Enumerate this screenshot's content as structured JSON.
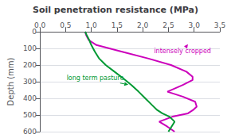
{
  "chart_data": {
    "type": "line",
    "title": "Soil penetration resistance (MPa)",
    "ylabel": "Depth (mm)",
    "xlim": [
      0.0,
      3.5
    ],
    "ylim": [
      600,
      0
    ],
    "xticks": [
      {
        "value": 0.0,
        "label": "0.0"
      },
      0.5,
      {
        "value": 1.0,
        "label": "1.0"
      },
      1.5,
      {
        "value": 2.0,
        "label": "2.0"
      },
      2.5,
      {
        "value": 3.0,
        "label": "3.0"
      },
      3.5
    ],
    "yticks": [
      0,
      100,
      200,
      300,
      400,
      500,
      600
    ],
    "grid": true,
    "series": [
      {
        "color": "#cc00bb",
        "x": [
          0.88,
          0.9,
          0.95,
          1.1,
          1.6,
          2.1,
          2.55,
          2.85,
          2.97,
          2.97,
          2.78,
          2.48,
          2.78,
          3.02,
          3.05,
          2.98,
          2.88,
          2.58,
          2.32,
          2.48,
          2.62
        ],
        "values": [
          0,
          20,
          50,
          80,
          120,
          160,
          200,
          240,
          270,
          290,
          320,
          360,
          390,
          420,
          450,
          470,
          490,
          510,
          540,
          570,
          600
        ]
      },
      {
        "color": "#009933",
        "x": [
          0.88,
          0.91,
          0.96,
          1.0,
          1.07,
          1.15,
          1.28,
          1.45,
          1.62,
          1.78,
          1.92,
          2.05,
          2.18,
          2.28,
          2.38,
          2.52,
          2.62,
          2.56,
          2.5
        ],
        "values": [
          0,
          20,
          50,
          80,
          120,
          160,
          200,
          240,
          280,
          320,
          360,
          400,
          440,
          470,
          490,
          510,
          540,
          570,
          600
        ]
      }
    ],
    "annotations": [
      {
        "text": "intensely cropped",
        "color": "#cc00bb",
        "x": 2.88,
        "y": 75,
        "text_x": 2.22,
        "text_y": 118
      },
      {
        "text": "long term pasture",
        "color": "#009933",
        "x": 1.72,
        "y": 318,
        "text_x": 0.52,
        "text_y": 280
      }
    ]
  }
}
